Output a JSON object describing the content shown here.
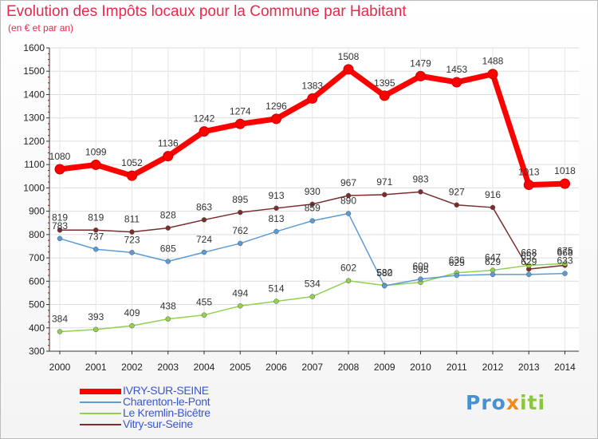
{
  "chart_data": {
    "type": "line",
    "title": "Evolution des Impôts locaux pour la Commune par Habitant",
    "subtitle": "(en € et par an)",
    "xlabel": "",
    "ylabel": "",
    "x": [
      "2000",
      "2001",
      "2002",
      "2003",
      "2004",
      "2005",
      "2006",
      "2007",
      "2008",
      "2009",
      "2010",
      "2011",
      "2012",
      "2013",
      "2014"
    ],
    "ylim": [
      300,
      1600
    ],
    "yticks": [
      300,
      400,
      500,
      600,
      700,
      800,
      900,
      1000,
      1100,
      1200,
      1300,
      1400,
      1500,
      1600
    ],
    "grid": true,
    "legend_position": "bottom-left",
    "series": [
      {
        "name": "IVRY-SUR-SEINE",
        "color": "#ff0000",
        "values": [
          1080,
          1099,
          1052,
          1136,
          1242,
          1274,
          1296,
          1383,
          1508,
          1395,
          1479,
          1453,
          1488,
          1013,
          1018
        ]
      },
      {
        "name": "Charenton-le-Pont",
        "color": "#5b9bd5",
        "values": [
          783,
          737,
          723,
          685,
          724,
          762,
          813,
          859,
          890,
          580,
          609,
          625,
          629,
          629,
          633
        ]
      },
      {
        "name": "Le Kremlin-Bicêtre",
        "color": "#92d050",
        "values": [
          384,
          393,
          409,
          438,
          455,
          494,
          514,
          534,
          602,
          582,
          595,
          636,
          647,
          668,
          675
        ]
      },
      {
        "name": "Vitry-sur-Seine",
        "color": "#7b2d2d",
        "values": [
          819,
          819,
          811,
          828,
          863,
          895,
          913,
          930,
          967,
          971,
          983,
          927,
          916,
          652,
          668
        ]
      }
    ]
  },
  "logo": {
    "p1": "Pro",
    "p2": "x",
    "p3": "iti"
  }
}
